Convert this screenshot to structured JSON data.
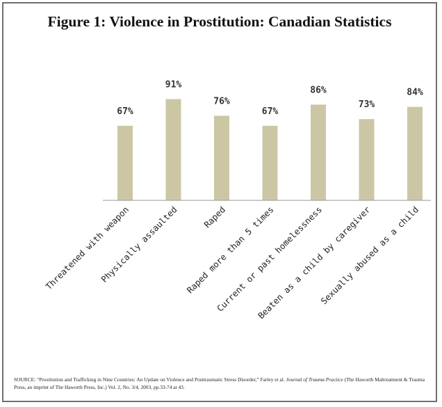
{
  "chart_data": {
    "type": "bar",
    "title": "Figure 1: Violence in Prostitution: Canadian Statistics",
    "categories": [
      "Threatened with weapon",
      "Physically assaulted",
      "Raped",
      "Raped more than 5 times",
      "Current or past homelessness",
      "Beaten as a child by caregiver",
      "Sexually abused as a child"
    ],
    "values": [
      67,
      91,
      76,
      67,
      86,
      73,
      84
    ],
    "value_labels": [
      "67%",
      "91%",
      "76%",
      "67%",
      "86%",
      "73%",
      "84%"
    ],
    "unit": "%",
    "ylim": [
      0,
      100
    ],
    "grid": false,
    "legend": "none",
    "bar_color": "#cbc7a4"
  },
  "source": {
    "part1": "SOURCE: “Prostitution and Trafficking in Nine Countries: An Update on Violence and Posttraumatic Stress Disorder,” Farley et al. ",
    "journal": "Journal of Trauma Practice",
    "part2": " (The Haworth Maltreatment & Trauma Press, an imprint of The Haworth Press, Inc.) Vol. 2, No. 3/4, 2003, pp.33-74 at 43."
  }
}
